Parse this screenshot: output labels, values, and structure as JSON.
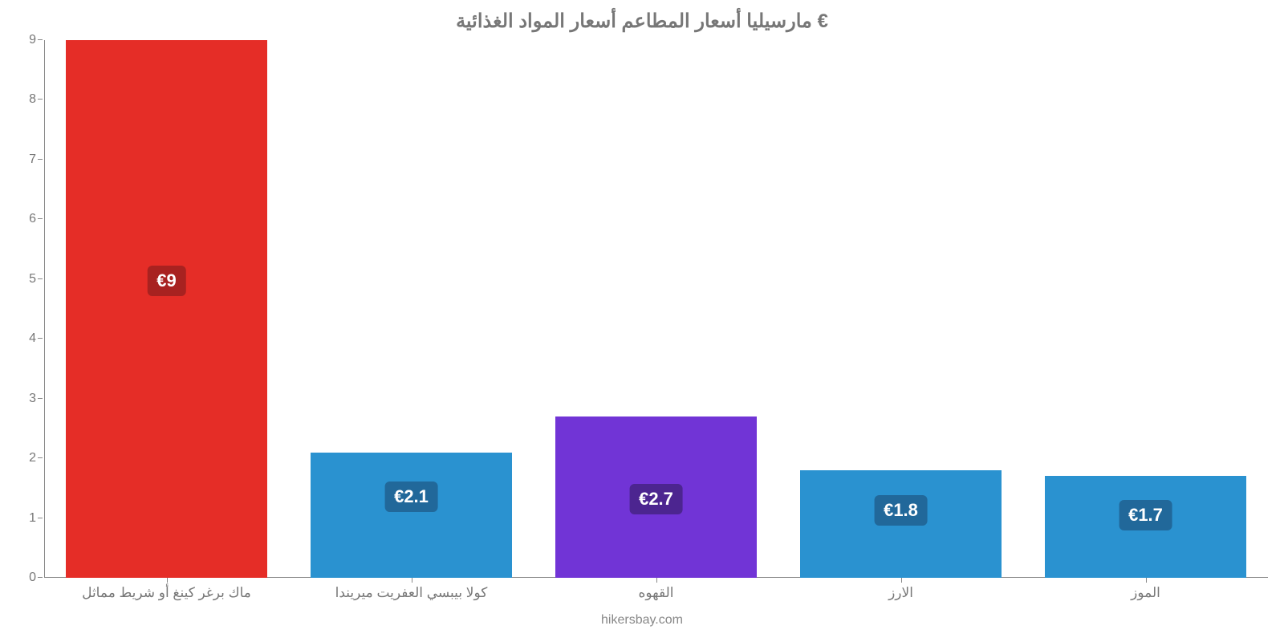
{
  "chart": {
    "type": "bar",
    "title": "مارسيليا أسعار المطاعم أسعار المواد الغذائية €",
    "title_fontsize": 24,
    "title_color": "#777777",
    "background_color": "#ffffff",
    "axis_color": "#888888",
    "tick_label_color": "#777777",
    "tick_fontsize": 16,
    "x_label_fontsize": 17,
    "bar_width_ratio": 0.82,
    "ylim": [
      0,
      9
    ],
    "ytick_step": 1,
    "y_ticks": [
      "0",
      "1",
      "2",
      "3",
      "4",
      "5",
      "6",
      "7",
      "8",
      "9"
    ],
    "categories": [
      "ماك برغر كينغ أو شريط مماثل",
      "كولا بيبسي العفريت ميريندا",
      "القهوه",
      "الارز",
      "الموز"
    ],
    "values": [
      9,
      2.1,
      2.7,
      1.8,
      1.7
    ],
    "value_labels": [
      "€9",
      "€2.1",
      "€2.7",
      "€1.8",
      "€1.7"
    ],
    "bar_colors": [
      "#e52d27",
      "#2a92d0",
      "#7134d6",
      "#2a92d0",
      "#2a92d0"
    ],
    "badge_colors": [
      "#a82220",
      "#21689a",
      "#4c2590",
      "#21689a",
      "#21689a"
    ],
    "badge_fontsize": 22,
    "badge_text_color": "#ffffff",
    "credit": "hikersbay.com",
    "credit_color": "#888888",
    "credit_fontsize": 16
  }
}
